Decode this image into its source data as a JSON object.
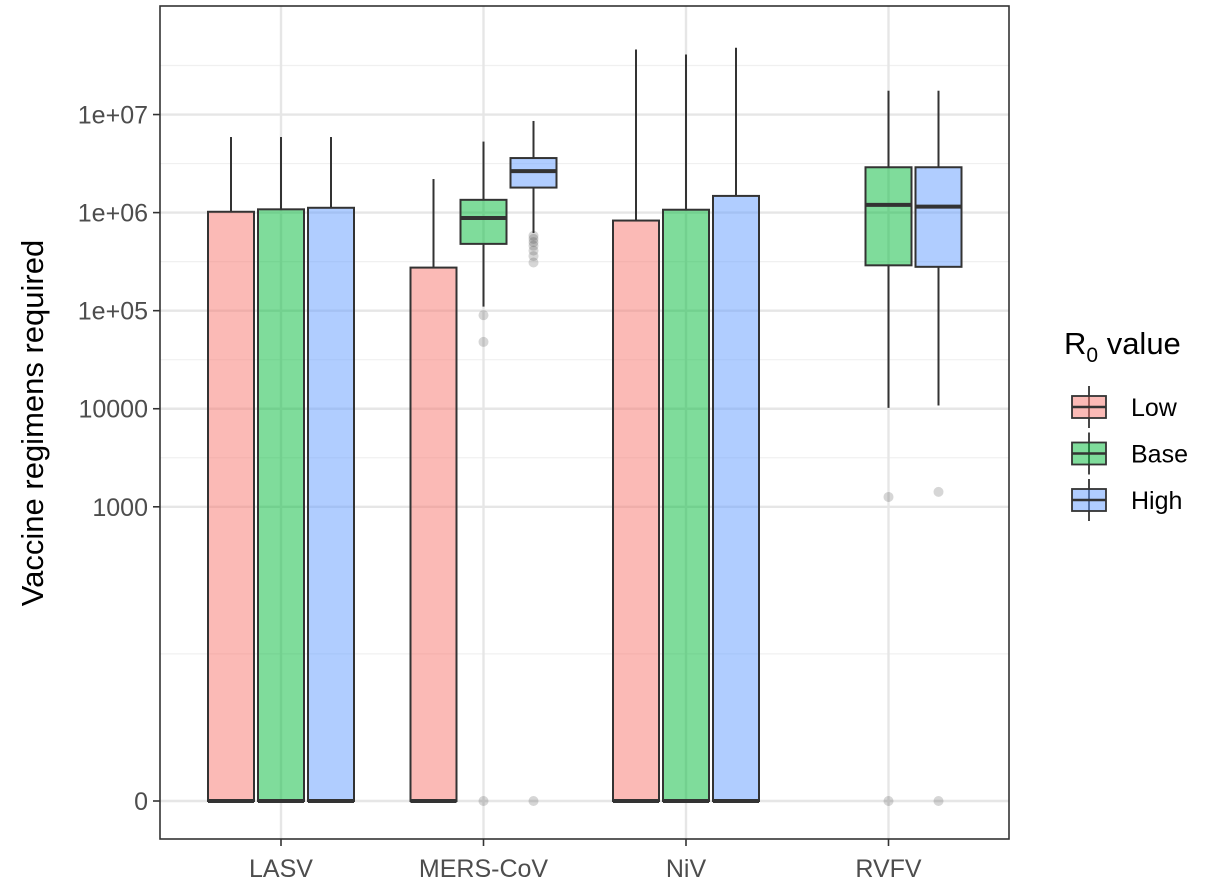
{
  "chart_data": {
    "type": "boxplot",
    "ylabel": "Vaccine regimens required",
    "y_scale": "pseudo-log",
    "y_ticks": [
      "0",
      "1000",
      "10000",
      "1e+05",
      "1e+06",
      "1e+07"
    ],
    "categories": [
      "LASV",
      "MERS-CoV",
      "NiV",
      "RVFV"
    ],
    "legend": {
      "title_main": "R",
      "title_sub": "0",
      "title_rest": " value",
      "placement": "right"
    },
    "grid": true,
    "colors": {
      "Low": "#F8766D",
      "Base": "#00BA38",
      "High": "#619CFF"
    },
    "series": [
      {
        "name": "Low",
        "boxes": [
          {
            "category": "LASV",
            "min": 0,
            "q1": 0,
            "median": 0,
            "q3": 1020000,
            "max": 5900000,
            "outliers": []
          },
          {
            "category": "MERS-CoV",
            "min": 0,
            "q1": 0,
            "median": 0,
            "q3": 275000,
            "max": 2200000,
            "outliers": []
          },
          {
            "category": "NiV",
            "min": 0,
            "q1": 0,
            "median": 0,
            "q3": 830000,
            "max": 46000000,
            "outliers": []
          }
        ]
      },
      {
        "name": "Base",
        "boxes": [
          {
            "category": "LASV",
            "min": 0,
            "q1": 0,
            "median": 0,
            "q3": 1080000,
            "max": 5900000,
            "outliers": []
          },
          {
            "category": "MERS-CoV",
            "min": 110000,
            "q1": 480000,
            "median": 880000,
            "q3": 1350000,
            "max": 5300000,
            "outliers": [
              0,
              48000,
              90000
            ]
          },
          {
            "category": "NiV",
            "min": 0,
            "q1": 0,
            "median": 0,
            "q3": 1070000,
            "max": 41000000,
            "outliers": []
          },
          {
            "category": "RVFV",
            "min": 10200,
            "q1": 290000,
            "median": 1200000,
            "q3": 2900000,
            "max": 17500000,
            "outliers": [
              0,
              1260
            ]
          }
        ]
      },
      {
        "name": "High",
        "boxes": [
          {
            "category": "LASV",
            "min": 0,
            "q1": 0,
            "median": 0,
            "q3": 1120000,
            "max": 5900000,
            "outliers": []
          },
          {
            "category": "MERS-CoV",
            "min": 620000,
            "q1": 1800000,
            "median": 2650000,
            "q3": 3600000,
            "max": 8600000,
            "outliers": [
              0,
              310000,
              360000,
              410000,
              460000,
              500000,
              540000,
              580000
            ]
          },
          {
            "category": "NiV",
            "min": 0,
            "q1": 0,
            "median": 0,
            "q3": 1480000,
            "max": 48000000,
            "outliers": []
          },
          {
            "category": "RVFV",
            "min": 10800,
            "q1": 280000,
            "median": 1150000,
            "q3": 2900000,
            "max": 17500000,
            "outliers": [
              0,
              1420
            ]
          }
        ]
      }
    ]
  }
}
